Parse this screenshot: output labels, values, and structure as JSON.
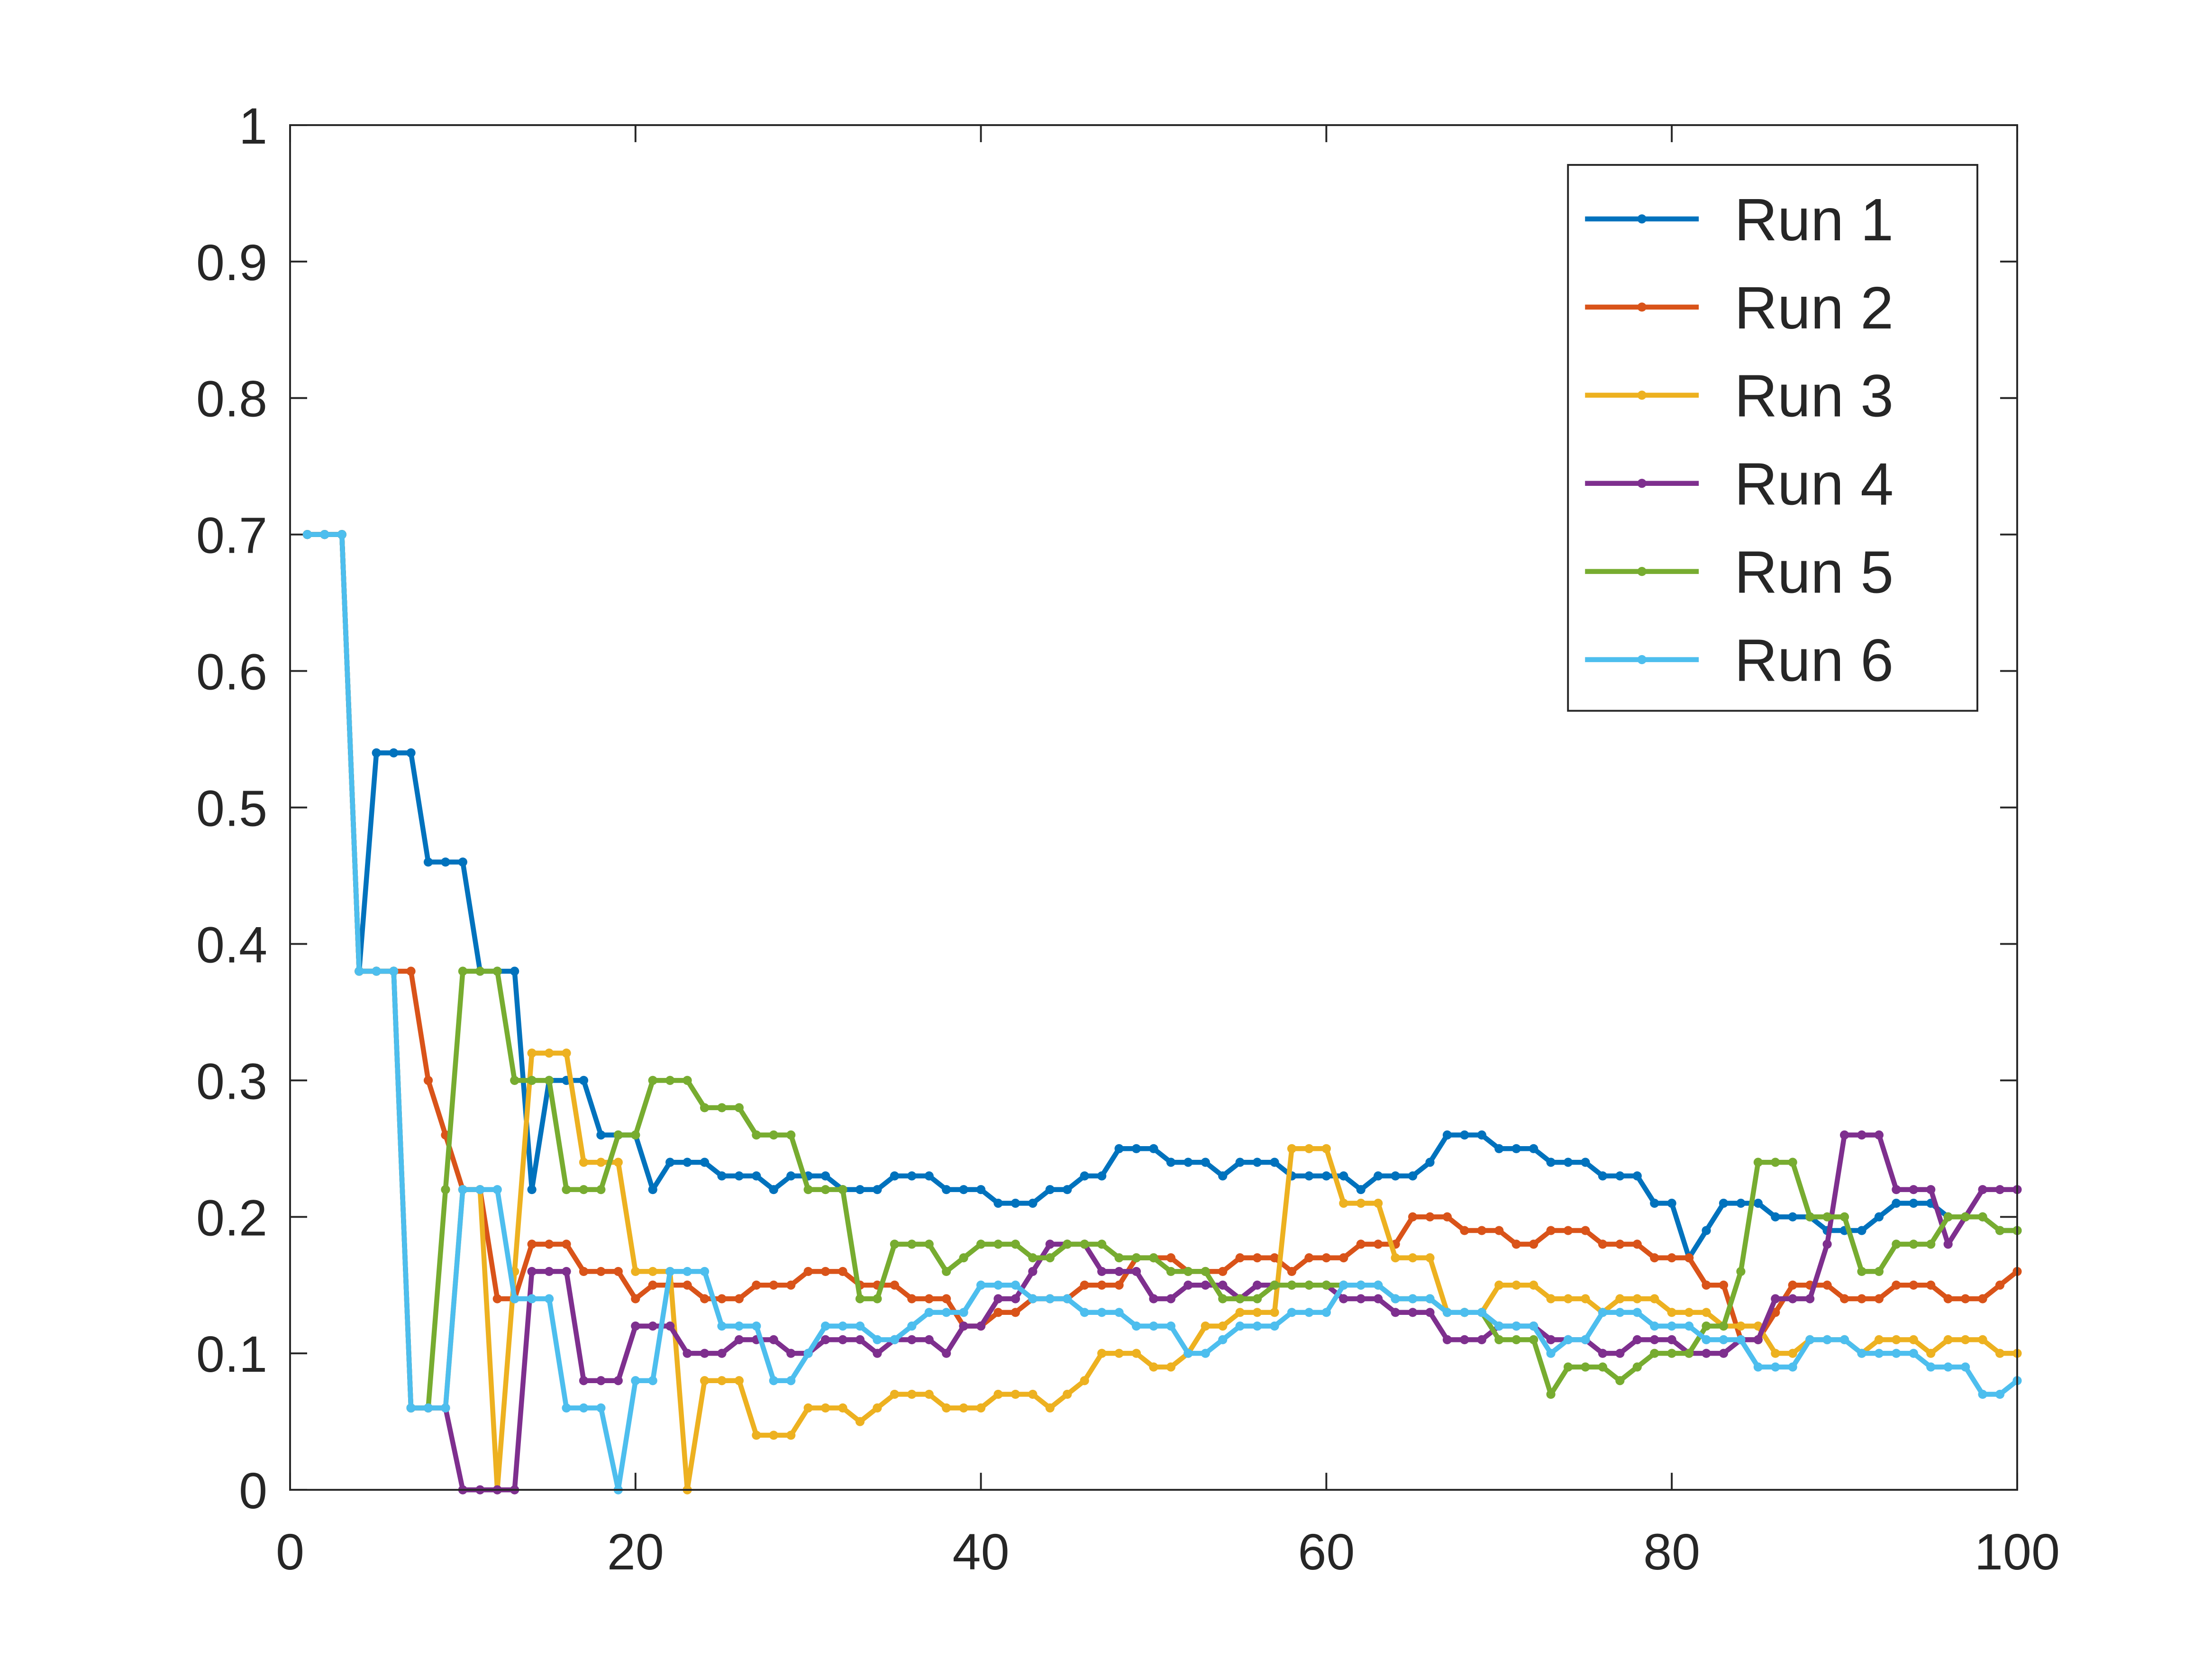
{
  "chart_data": {
    "type": "line",
    "x": [
      1,
      2,
      3,
      4,
      5,
      6,
      7,
      8,
      9,
      10,
      11,
      12,
      13,
      14,
      15,
      16,
      17,
      18,
      19,
      20,
      21,
      22,
      23,
      24,
      25,
      26,
      27,
      28,
      29,
      30,
      31,
      32,
      33,
      34,
      35,
      36,
      37,
      38,
      39,
      40,
      41,
      42,
      43,
      44,
      45,
      46,
      47,
      48,
      49,
      50,
      51,
      52,
      53,
      54,
      55,
      56,
      57,
      58,
      59,
      60,
      61,
      62,
      63,
      64,
      65,
      66,
      67,
      68,
      69,
      70,
      71,
      72,
      73,
      74,
      75,
      76,
      77,
      78,
      79,
      80,
      81,
      82,
      83,
      84,
      85,
      86,
      87,
      88,
      89,
      90,
      91,
      92,
      93,
      94,
      95,
      96,
      97,
      98,
      99,
      100
    ],
    "series": [
      {
        "name": "Run 1",
        "color": "#0072bd",
        "values": [
          0.7,
          0.7,
          0.7,
          0.38,
          0.54,
          0.54,
          0.54,
          0.46,
          0.46,
          0.46,
          0.38,
          0.38,
          0.38,
          0.22,
          0.3,
          0.3,
          0.3,
          0.26,
          0.26,
          0.26,
          0.22,
          0.24,
          0.24,
          0.24,
          0.23,
          0.23,
          0.23,
          0.22,
          0.23,
          0.23,
          0.23,
          0.22,
          0.22,
          0.22,
          0.23,
          0.23,
          0.23,
          0.22,
          0.22,
          0.22,
          0.21,
          0.21,
          0.21,
          0.22,
          0.22,
          0.23,
          0.23,
          0.25,
          0.25,
          0.25,
          0.24,
          0.24,
          0.24,
          0.23,
          0.24,
          0.24,
          0.24,
          0.23,
          0.23,
          0.23,
          0.23,
          0.22,
          0.23,
          0.23,
          0.23,
          0.24,
          0.26,
          0.26,
          0.26,
          0.25,
          0.25,
          0.25,
          0.24,
          0.24,
          0.24,
          0.23,
          0.23,
          0.23,
          0.21,
          0.21,
          0.17,
          0.19,
          0.21,
          0.21,
          0.21,
          0.2,
          0.2,
          0.2,
          0.19,
          0.19,
          0.19,
          0.2,
          0.21,
          0.21,
          0.21,
          0.2,
          0.2,
          0.2,
          0.19,
          0.19
        ]
      },
      {
        "name": "Run 2",
        "color": "#d95319",
        "values": [
          0.7,
          0.7,
          0.7,
          0.38,
          0.38,
          0.38,
          0.38,
          0.3,
          0.26,
          0.22,
          0.22,
          0.14,
          0.14,
          0.18,
          0.18,
          0.18,
          0.16,
          0.16,
          0.16,
          0.14,
          0.15,
          0.15,
          0.15,
          0.14,
          0.14,
          0.14,
          0.15,
          0.15,
          0.15,
          0.16,
          0.16,
          0.16,
          0.15,
          0.15,
          0.15,
          0.14,
          0.14,
          0.14,
          0.12,
          0.12,
          0.13,
          0.13,
          0.14,
          0.14,
          0.14,
          0.15,
          0.15,
          0.15,
          0.17,
          0.17,
          0.17,
          0.16,
          0.16,
          0.16,
          0.17,
          0.17,
          0.17,
          0.16,
          0.17,
          0.17,
          0.17,
          0.18,
          0.18,
          0.18,
          0.2,
          0.2,
          0.2,
          0.19,
          0.19,
          0.19,
          0.18,
          0.18,
          0.19,
          0.19,
          0.19,
          0.18,
          0.18,
          0.18,
          0.17,
          0.17,
          0.17,
          0.15,
          0.15,
          0.11,
          0.11,
          0.13,
          0.15,
          0.15,
          0.15,
          0.14,
          0.14,
          0.14,
          0.15,
          0.15,
          0.15,
          0.14,
          0.14,
          0.14,
          0.15,
          0.16
        ]
      },
      {
        "name": "Run 3",
        "color": "#edb120",
        "values": [
          0.7,
          0.7,
          0.7,
          0.38,
          0.38,
          0.38,
          0.06,
          0.06,
          0.06,
          0.22,
          0.22,
          0,
          0.16,
          0.32,
          0.32,
          0.32,
          0.24,
          0.24,
          0.24,
          0.16,
          0.16,
          0.16,
          0,
          0.08,
          0.08,
          0.08,
          0.04,
          0.04,
          0.04,
          0.06,
          0.06,
          0.06,
          0.05,
          0.06,
          0.07,
          0.07,
          0.07,
          0.06,
          0.06,
          0.06,
          0.07,
          0.07,
          0.07,
          0.06,
          0.07,
          0.08,
          0.1,
          0.1,
          0.1,
          0.09,
          0.09,
          0.1,
          0.12,
          0.12,
          0.13,
          0.13,
          0.13,
          0.25,
          0.25,
          0.25,
          0.21,
          0.21,
          0.21,
          0.17,
          0.17,
          0.17,
          0.13,
          0.13,
          0.13,
          0.15,
          0.15,
          0.15,
          0.14,
          0.14,
          0.14,
          0.13,
          0.14,
          0.14,
          0.14,
          0.13,
          0.13,
          0.13,
          0.12,
          0.12,
          0.12,
          0.1,
          0.1,
          0.11,
          0.11,
          0.11,
          0.1,
          0.11,
          0.11,
          0.11,
          0.1,
          0.11,
          0.11,
          0.11,
          0.1,
          0.1
        ]
      },
      {
        "name": "Run 4",
        "color": "#7e2f8e",
        "values": [
          0.7,
          0.7,
          0.7,
          0.38,
          0.38,
          0.38,
          0.06,
          0.06,
          0.06,
          0,
          0,
          0,
          0,
          0.16,
          0.16,
          0.16,
          0.08,
          0.08,
          0.08,
          0.12,
          0.12,
          0.12,
          0.1,
          0.1,
          0.1,
          0.11,
          0.11,
          0.11,
          0.1,
          0.1,
          0.11,
          0.11,
          0.11,
          0.1,
          0.11,
          0.11,
          0.11,
          0.1,
          0.12,
          0.12,
          0.14,
          0.14,
          0.16,
          0.18,
          0.18,
          0.18,
          0.16,
          0.16,
          0.16,
          0.14,
          0.14,
          0.15,
          0.15,
          0.15,
          0.14,
          0.15,
          0.15,
          0.15,
          0.15,
          0.15,
          0.14,
          0.14,
          0.14,
          0.13,
          0.13,
          0.13,
          0.11,
          0.11,
          0.11,
          0.12,
          0.12,
          0.12,
          0.11,
          0.11,
          0.11,
          0.1,
          0.1,
          0.11,
          0.11,
          0.11,
          0.1,
          0.1,
          0.1,
          0.11,
          0.11,
          0.14,
          0.14,
          0.14,
          0.18,
          0.26,
          0.26,
          0.26,
          0.22,
          0.22,
          0.22,
          0.18,
          0.2,
          0.22,
          0.22,
          0.22
        ]
      },
      {
        "name": "Run 5",
        "color": "#77ac30",
        "values": [
          0.7,
          0.7,
          0.7,
          0.38,
          0.38,
          0.38,
          0.06,
          0.06,
          0.22,
          0.38,
          0.38,
          0.38,
          0.3,
          0.3,
          0.3,
          0.22,
          0.22,
          0.22,
          0.26,
          0.26,
          0.3,
          0.3,
          0.3,
          0.28,
          0.28,
          0.28,
          0.26,
          0.26,
          0.26,
          0.22,
          0.22,
          0.22,
          0.14,
          0.14,
          0.18,
          0.18,
          0.18,
          0.16,
          0.17,
          0.18,
          0.18,
          0.18,
          0.17,
          0.17,
          0.18,
          0.18,
          0.18,
          0.17,
          0.17,
          0.17,
          0.16,
          0.16,
          0.16,
          0.14,
          0.14,
          0.14,
          0.15,
          0.15,
          0.15,
          0.15,
          0.15,
          0.15,
          0.15,
          0.14,
          0.14,
          0.14,
          0.13,
          0.13,
          0.13,
          0.11,
          0.11,
          0.11,
          0.07,
          0.09,
          0.09,
          0.09,
          0.08,
          0.09,
          0.1,
          0.1,
          0.1,
          0.12,
          0.12,
          0.16,
          0.24,
          0.24,
          0.24,
          0.2,
          0.2,
          0.2,
          0.16,
          0.16,
          0.18,
          0.18,
          0.18,
          0.2,
          0.2,
          0.2,
          0.19,
          0.19
        ]
      },
      {
        "name": "Run 6",
        "color": "#4dbeee",
        "values": [
          0.7,
          0.7,
          0.7,
          0.38,
          0.38,
          0.38,
          0.06,
          0.06,
          0.06,
          0.22,
          0.22,
          0.22,
          0.14,
          0.14,
          0.14,
          0.06,
          0.06,
          0.06,
          0,
          0.08,
          0.08,
          0.16,
          0.16,
          0.16,
          0.12,
          0.12,
          0.12,
          0.08,
          0.08,
          0.1,
          0.12,
          0.12,
          0.12,
          0.11,
          0.11,
          0.12,
          0.13,
          0.13,
          0.13,
          0.15,
          0.15,
          0.15,
          0.14,
          0.14,
          0.14,
          0.13,
          0.13,
          0.13,
          0.12,
          0.12,
          0.12,
          0.1,
          0.1,
          0.11,
          0.12,
          0.12,
          0.12,
          0.13,
          0.13,
          0.13,
          0.15,
          0.15,
          0.15,
          0.14,
          0.14,
          0.14,
          0.13,
          0.13,
          0.13,
          0.12,
          0.12,
          0.12,
          0.1,
          0.11,
          0.11,
          0.13,
          0.13,
          0.13,
          0.12,
          0.12,
          0.12,
          0.11,
          0.11,
          0.11,
          0.09,
          0.09,
          0.09,
          0.11,
          0.11,
          0.11,
          0.1,
          0.1,
          0.1,
          0.1,
          0.09,
          0.09,
          0.09,
          0.07,
          0.07,
          0.08
        ]
      }
    ],
    "xlim": [
      0,
      100
    ],
    "xticks": [
      0,
      20,
      40,
      60,
      80,
      100
    ],
    "ylim": [
      0,
      1
    ],
    "yticks": [
      0,
      0.1,
      0.2,
      0.3,
      0.4,
      0.5,
      0.6,
      0.7,
      0.8,
      0.9,
      1
    ],
    "grid": false,
    "legend_position": "upper right",
    "markers": true
  }
}
